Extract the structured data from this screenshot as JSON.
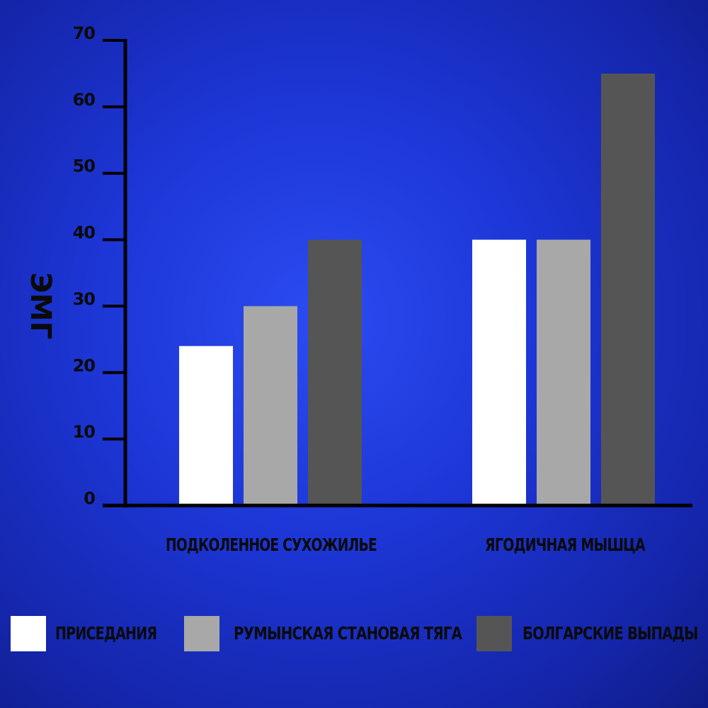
{
  "chart_data": {
    "type": "bar",
    "ylabel": "ЭМГ",
    "ylim": [
      0,
      70
    ],
    "yticks": [
      0,
      10,
      20,
      30,
      40,
      50,
      60,
      70
    ],
    "categories": [
      "ПОДКОЛЕННОЕ СУХОЖИЛЬЕ",
      "ЯГОДИЧНАЯ МЫШЦА"
    ],
    "series": [
      {
        "name": "ПРИСЕДАНИЯ",
        "color": "#ffffff",
        "values": [
          24,
          40
        ]
      },
      {
        "name": "РУМЫНСКАЯ СТАНОВАЯ ТЯГА",
        "color": "#a8a8a8",
        "values": [
          30,
          40
        ]
      },
      {
        "name": "БОЛГАРСКИЕ ВЫПАДЫ",
        "color": "#555555",
        "values": [
          40,
          65
        ]
      }
    ],
    "grid": false,
    "legend": "bottom"
  }
}
